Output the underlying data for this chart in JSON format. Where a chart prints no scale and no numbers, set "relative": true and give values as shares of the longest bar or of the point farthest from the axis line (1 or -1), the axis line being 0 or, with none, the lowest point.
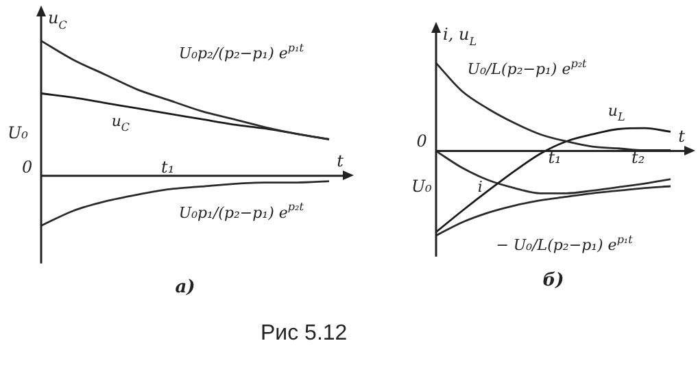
{
  "chart_data": [
    {
      "type": "line",
      "title": "а)",
      "xlabel": "t",
      "ylabel": "u$_{C}$",
      "relative": true,
      "categories": [
        null,
        null,
        null,
        null,
        null,
        null,
        null,
        null,
        null,
        null
      ],
      "series": [
        {
          "name": "U₀p₂/(p₂−p₁) e$^{p₁t}$",
          "color": "#2a2a2a",
          "values": [
            1,
            0.86,
            0.75,
            0.64,
            0.56,
            0.48,
            0.42,
            0.36,
            0.31,
            0.27
          ]
        },
        {
          "name": "u$_{C}$",
          "color": "#1a1a1a",
          "values": [
            0.61,
            0.58,
            0.54,
            0.5,
            0.46,
            0.42,
            0.38,
            0.35,
            0.31,
            0.27
          ]
        },
        {
          "name": "U₀p₁/(p₂−p₁) e$^{p₂t}$",
          "color": "#2a2a2a",
          "values": [
            -0.37,
            -0.26,
            -0.19,
            -0.14,
            -0.1,
            -0.08,
            -0.06,
            -0.05,
            -0.05,
            -0.04
          ]
        }
      ],
      "annotations": [
        "U₀",
        "0",
        "t₁",
        "Рис 5.12"
      ]
    },
    {
      "type": "line",
      "title": "б)",
      "xlabel": "t",
      "ylabel": "i, u$_{L}$",
      "relative": true,
      "categories": [
        null,
        null,
        null,
        null,
        null,
        null,
        null,
        null,
        null,
        null
      ],
      "series": [
        {
          "name": "U₀/L(p₂−p₁) e$^{p₂t}$",
          "color": "#2a2a2a",
          "values": [
            1,
            0.68,
            0.48,
            0.32,
            0.19,
            0.11,
            0.05,
            0.03,
            0.01,
            0.01
          ]
        },
        {
          "name": "u$_{L}$",
          "color": "#1a1a1a",
          "values": [
            -0.92,
            -0.68,
            -0.45,
            -0.23,
            -0.03,
            0.11,
            0.19,
            0.25,
            0.26,
            0.22
          ]
        },
        {
          "name": "i",
          "color": "#2a2a2a",
          "values": [
            0,
            -0.19,
            -0.33,
            -0.42,
            -0.48,
            -0.48,
            -0.45,
            -0.41,
            -0.37,
            -0.32
          ]
        },
        {
          "name": "− U₀/L(p₂−p₁) e$^{p₁t}$",
          "color": "#2a2a2a",
          "values": [
            -0.96,
            -0.81,
            -0.7,
            -0.62,
            -0.56,
            -0.52,
            -0.48,
            -0.45,
            -0.42,
            -0.4
          ]
        }
      ],
      "annotations": [
        "0",
        "U₀",
        "t₁",
        "t₂"
      ]
    }
  ]
}
